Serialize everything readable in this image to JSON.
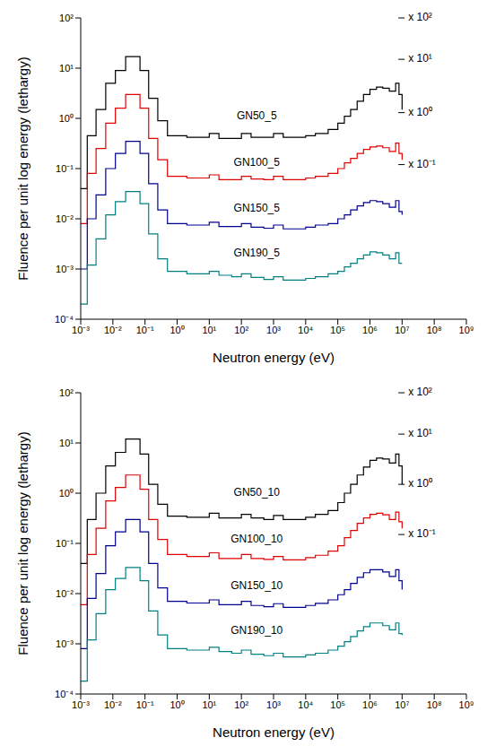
{
  "chart_data": [
    {
      "type": "line",
      "line_style": "step",
      "log": true,
      "grid": false,
      "x_label": "Neutron energy (eV)",
      "y_label": "Fluence per unit log energy (lethargy)",
      "xlim": [
        0.001,
        1000000000
      ],
      "ylim": [
        0.0001,
        100
      ],
      "xticks": [
        {
          "value": 0.001,
          "label": "10⁻³"
        },
        {
          "value": 0.01,
          "label": "10⁻²"
        },
        {
          "value": 0.1,
          "label": "10⁻¹"
        },
        {
          "value": 1,
          "label": "10⁰"
        },
        {
          "value": 10,
          "label": "10¹"
        },
        {
          "value": 100,
          "label": "10²"
        },
        {
          "value": 1000,
          "label": "10³"
        },
        {
          "value": 10000,
          "label": "10⁴"
        },
        {
          "value": 100000,
          "label": "10⁵"
        },
        {
          "value": 1000000,
          "label": "10⁶"
        },
        {
          "value": 10000000,
          "label": "10⁷"
        },
        {
          "value": 100000000,
          "label": "10⁸"
        },
        {
          "value": 1000000000,
          "label": "10⁹"
        }
      ],
      "yticks": [
        {
          "value": 0.0001,
          "label": "10⁻⁴"
        },
        {
          "value": 0.001,
          "label": "10⁻³"
        },
        {
          "value": 0.01,
          "label": "10⁻²"
        },
        {
          "value": 0.1,
          "label": "10⁻¹"
        },
        {
          "value": 1,
          "label": "10⁰"
        },
        {
          "value": 10,
          "label": "10¹"
        },
        {
          "value": 100,
          "label": "10²"
        }
      ],
      "x": [
        0.001,
        0.0016,
        0.003,
        0.006,
        0.012,
        0.025,
        0.07,
        0.13,
        0.25,
        0.5,
        1,
        2,
        5,
        10,
        20,
        50,
        100,
        200,
        500,
        1000,
        2000,
        5000,
        10000,
        20000,
        50000,
        100000,
        160000,
        250000,
        400000,
        630000,
        1000000,
        1600000,
        2500000,
        4000000,
        6300000,
        8000000,
        10000000
      ],
      "series": [
        {
          "name": "GN50_5",
          "color": "#000000",
          "values": [
            0.04,
            0.45,
            1.5,
            5,
            9,
            17,
            9,
            2.5,
            0.9,
            0.45,
            0.45,
            0.42,
            0.42,
            0.5,
            0.4,
            0.4,
            0.5,
            0.42,
            0.42,
            0.5,
            0.42,
            0.42,
            0.45,
            0.5,
            0.6,
            0.8,
            1.1,
            1.5,
            2.2,
            3,
            3.8,
            4.2,
            4,
            3.5,
            5,
            3,
            1.5
          ]
        },
        {
          "name": "GN100_5",
          "color": "#e00000",
          "values": [
            0.008,
            0.08,
            0.25,
            0.8,
            1.6,
            3,
            1.6,
            0.4,
            0.15,
            0.07,
            0.07,
            0.065,
            0.065,
            0.075,
            0.06,
            0.06,
            0.07,
            0.062,
            0.06,
            0.07,
            0.06,
            0.06,
            0.065,
            0.07,
            0.08,
            0.1,
            0.13,
            0.16,
            0.2,
            0.24,
            0.27,
            0.28,
            0.26,
            0.22,
            0.32,
            0.2,
            0.15
          ]
        },
        {
          "name": "GN150_5",
          "color": "#000090",
          "values": [
            0.001,
            0.01,
            0.03,
            0.1,
            0.2,
            0.35,
            0.2,
            0.05,
            0.015,
            0.008,
            0.008,
            0.0075,
            0.0075,
            0.0085,
            0.007,
            0.007,
            0.008,
            0.0068,
            0.0065,
            0.0075,
            0.0063,
            0.0063,
            0.0068,
            0.0075,
            0.008,
            0.01,
            0.012,
            0.015,
            0.018,
            0.021,
            0.023,
            0.022,
            0.02,
            0.017,
            0.023,
            0.014,
            0.012
          ]
        },
        {
          "name": "GN190_5",
          "color": "#008080",
          "values": [
            0.0002,
            0.0012,
            0.004,
            0.012,
            0.022,
            0.035,
            0.02,
            0.005,
            0.0016,
            0.0009,
            0.0009,
            0.0008,
            0.0008,
            0.0009,
            0.00075,
            0.0007,
            0.0008,
            0.00068,
            0.00062,
            0.0007,
            0.0006,
            0.0006,
            0.00065,
            0.0007,
            0.0008,
            0.0009,
            0.0011,
            0.0013,
            0.0016,
            0.0019,
            0.0022,
            0.0021,
            0.0019,
            0.0016,
            0.0021,
            0.0013,
            0.0013
          ]
        }
      ],
      "annotations": [
        {
          "text": "GN50_5",
          "x": 300,
          "y": 1.1
        },
        {
          "text": "GN100_5",
          "x": 300,
          "y": 0.13
        },
        {
          "text": "GN150_5",
          "x": 300,
          "y": 0.016
        },
        {
          "text": "GN190_5",
          "x": 300,
          "y": 0.002
        },
        {
          "text": "x 10²",
          "x": 12000000,
          "y": 100,
          "marker": "tick"
        },
        {
          "text": "x 10¹",
          "x": 12000000,
          "y": 15,
          "marker": "tick"
        },
        {
          "text": "x 10⁰",
          "x": 12000000,
          "y": 1.3,
          "marker": "tick"
        },
        {
          "text": "x 10⁻¹",
          "x": 12000000,
          "y": 0.12,
          "marker": "tick"
        }
      ]
    },
    {
      "type": "line",
      "line_style": "step",
      "log": true,
      "grid": false,
      "x_label": "Neutron energy (eV)",
      "y_label": "Fluence per unit log energy (lethargy)",
      "xlim": [
        0.001,
        1000000000
      ],
      "ylim": [
        0.0001,
        100
      ],
      "xticks": [
        {
          "value": 0.001,
          "label": "10⁻³"
        },
        {
          "value": 0.01,
          "label": "10⁻²"
        },
        {
          "value": 0.1,
          "label": "10⁻¹"
        },
        {
          "value": 1,
          "label": "10⁰"
        },
        {
          "value": 10,
          "label": "10¹"
        },
        {
          "value": 100,
          "label": "10²"
        },
        {
          "value": 1000,
          "label": "10³"
        },
        {
          "value": 10000,
          "label": "10⁴"
        },
        {
          "value": 100000,
          "label": "10⁵"
        },
        {
          "value": 1000000,
          "label": "10⁶"
        },
        {
          "value": 10000000,
          "label": "10⁷"
        },
        {
          "value": 100000000,
          "label": "10⁸"
        },
        {
          "value": 1000000000,
          "label": "10⁹"
        }
      ],
      "yticks": [
        {
          "value": 0.0001,
          "label": "10⁻⁴"
        },
        {
          "value": 0.001,
          "label": "10⁻³"
        },
        {
          "value": 0.01,
          "label": "10⁻²"
        },
        {
          "value": 0.1,
          "label": "10⁻¹"
        },
        {
          "value": 1,
          "label": "10⁰"
        },
        {
          "value": 10,
          "label": "10¹"
        },
        {
          "value": 100,
          "label": "10²"
        }
      ],
      "x": [
        0.001,
        0.0016,
        0.003,
        0.006,
        0.012,
        0.025,
        0.07,
        0.13,
        0.25,
        0.5,
        1,
        2,
        5,
        10,
        20,
        50,
        100,
        200,
        500,
        1000,
        2000,
        5000,
        10000,
        20000,
        50000,
        100000,
        160000,
        250000,
        400000,
        630000,
        1000000,
        1600000,
        2500000,
        4000000,
        6300000,
        8000000,
        10000000
      ],
      "series": [
        {
          "name": "GN50_10",
          "color": "#000000",
          "values": [
            0.04,
            0.3,
            1.0,
            3.5,
            6.5,
            12,
            6,
            1.5,
            0.6,
            0.35,
            0.35,
            0.33,
            0.33,
            0.4,
            0.32,
            0.32,
            0.38,
            0.32,
            0.3,
            0.36,
            0.3,
            0.3,
            0.33,
            0.38,
            0.45,
            0.65,
            1,
            1.5,
            2.3,
            3.3,
            4.5,
            5,
            4.8,
            4,
            6,
            3.5,
            1.5
          ]
        },
        {
          "name": "GN100_10",
          "color": "#e00000",
          "values": [
            0.006,
            0.06,
            0.2,
            0.7,
            1.3,
            2.3,
            1.2,
            0.3,
            0.12,
            0.06,
            0.06,
            0.055,
            0.055,
            0.065,
            0.05,
            0.05,
            0.06,
            0.05,
            0.048,
            0.055,
            0.047,
            0.047,
            0.052,
            0.058,
            0.07,
            0.09,
            0.13,
            0.18,
            0.25,
            0.32,
            0.38,
            0.4,
            0.37,
            0.3,
            0.42,
            0.27,
            0.2
          ]
        },
        {
          "name": "GN150_10",
          "color": "#000090",
          "values": [
            0.0008,
            0.008,
            0.025,
            0.09,
            0.17,
            0.3,
            0.17,
            0.04,
            0.013,
            0.007,
            0.007,
            0.0065,
            0.0065,
            0.0075,
            0.006,
            0.006,
            0.007,
            0.0058,
            0.0055,
            0.0063,
            0.0053,
            0.0053,
            0.0058,
            0.0064,
            0.0075,
            0.0095,
            0.012,
            0.016,
            0.021,
            0.026,
            0.03,
            0.03,
            0.027,
            0.022,
            0.03,
            0.018,
            0.012
          ]
        },
        {
          "name": "GN190_10",
          "color": "#008080",
          "values": [
            0.00018,
            0.0012,
            0.004,
            0.012,
            0.02,
            0.033,
            0.018,
            0.0045,
            0.0015,
            0.0008,
            0.0008,
            0.00075,
            0.00075,
            0.00085,
            0.0007,
            0.00065,
            0.00075,
            0.00062,
            0.00058,
            0.00065,
            0.00055,
            0.00055,
            0.0006,
            0.00065,
            0.00075,
            0.0009,
            0.0011,
            0.0014,
            0.0018,
            0.0022,
            0.0026,
            0.0026,
            0.0023,
            0.0019,
            0.0026,
            0.0016,
            0.0015
          ]
        }
      ],
      "annotations": [
        {
          "text": "GN50_10",
          "x": 300,
          "y": 1.0
        },
        {
          "text": "GN100_10",
          "x": 300,
          "y": 0.12
        },
        {
          "text": "GN150_10",
          "x": 300,
          "y": 0.014
        },
        {
          "text": "GN190_10",
          "x": 300,
          "y": 0.0018
        },
        {
          "text": "x 10²",
          "x": 12000000,
          "y": 100,
          "marker": "tick"
        },
        {
          "text": "x 10¹",
          "x": 12000000,
          "y": 15,
          "marker": "tick"
        },
        {
          "text": "x 10⁰",
          "x": 12000000,
          "y": 1.5,
          "marker": "tick"
        },
        {
          "text": "x 10⁻¹",
          "x": 12000000,
          "y": 0.15,
          "marker": "tick"
        }
      ]
    }
  ]
}
